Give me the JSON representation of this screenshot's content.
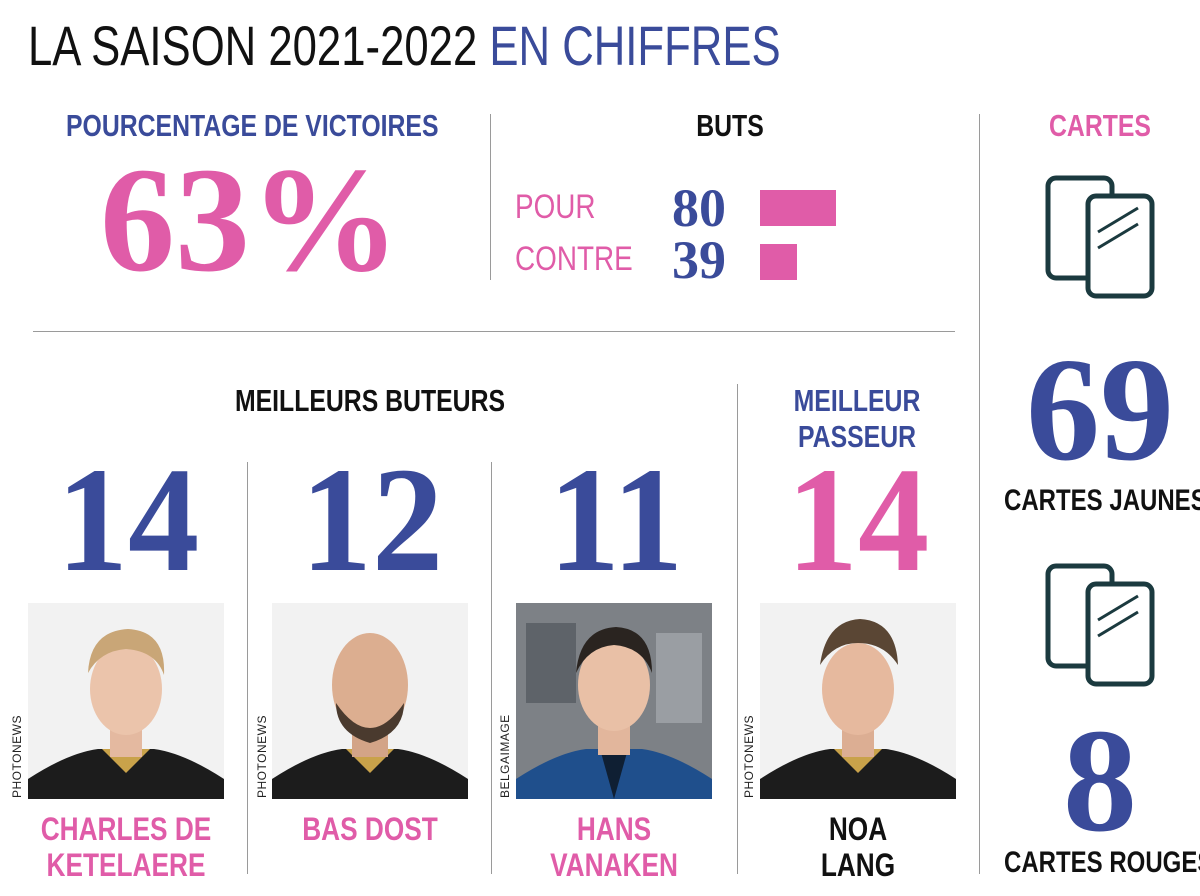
{
  "title": {
    "main": "LA SAISON 2021-2022",
    "accent": "EN CHIFFRES"
  },
  "victories": {
    "label": "POURCENTAGE DE VICTOIRES",
    "value": "63%"
  },
  "goals": {
    "label": "BUTS",
    "for_label": "POUR",
    "for_value": "80",
    "against_label": "CONTRE",
    "against_value": "39",
    "for_count": 80,
    "against_count": 39
  },
  "cards": {
    "label": "CARTES",
    "yellow_value": "69",
    "yellow_label": "CARTES JAUNES",
    "red_value": "8",
    "red_label": "CARTES ROUGES",
    "icon": "cards-icon"
  },
  "top_scorers": {
    "label": "MEILLEURS BUTEURS",
    "players": [
      {
        "goals": "14",
        "name_line1": "CHARLES DE",
        "name_line2": "KETELAERE",
        "credit": "PHOTONEWS"
      },
      {
        "goals": "12",
        "name_line1": "BAS DOST",
        "name_line2": "",
        "credit": "PHOTONEWS"
      },
      {
        "goals": "11",
        "name_line1": "HANS",
        "name_line2": "VANAKEN",
        "credit": "BELGAIMAGE"
      }
    ]
  },
  "top_assist": {
    "label_line1": "MEILLEUR",
    "label_line2": "PASSEUR",
    "value": "14",
    "name_line1": "NOA",
    "name_line2": "LANG",
    "credit": "PHOTONEWS"
  },
  "colors": {
    "blue": "#3a4b9a",
    "pink": "#e05ca8",
    "dark": "#111111",
    "icon": "#1b3a3f"
  }
}
